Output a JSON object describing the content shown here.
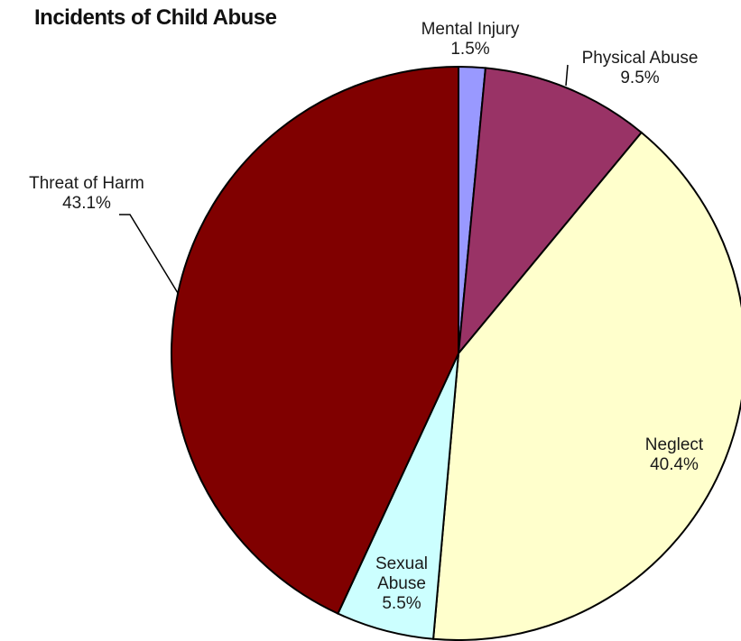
{
  "chart_data": {
    "type": "pie",
    "title": "Incidents of Child Abuse",
    "slices": [
      {
        "name": "Mental Injury",
        "value": 1.5,
        "label": "1.5%",
        "color": "#9999ff"
      },
      {
        "name": "Physical Abuse",
        "value": 9.5,
        "label": "9.5%",
        "color": "#993366"
      },
      {
        "name": "Neglect",
        "value": 40.4,
        "label": "40.4%",
        "color": "#ffffcc"
      },
      {
        "name": "Sexual Abuse",
        "value": 5.5,
        "label": "5.5%",
        "color": "#ccffff"
      },
      {
        "name": "Threat of Harm",
        "value": 43.1,
        "label": "43.1%",
        "color": "#800000"
      }
    ],
    "start_angle_deg": 0,
    "direction": "clockwise",
    "legend": "none",
    "labels": "outside with leader lines"
  }
}
